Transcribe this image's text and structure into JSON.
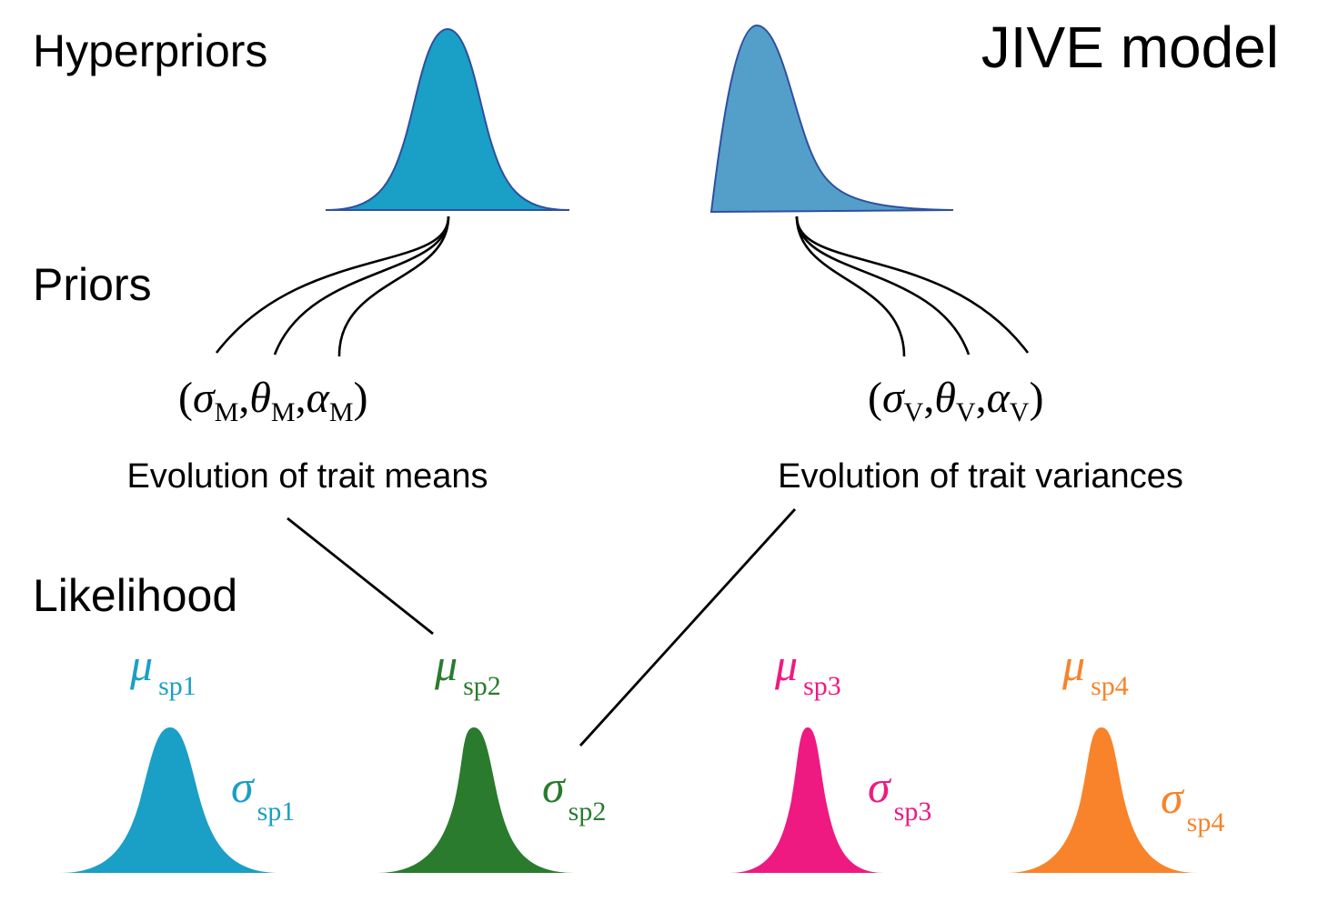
{
  "title": "JIVE model",
  "levels": {
    "hyperpriors": "Hyperpriors",
    "priors": "Priors",
    "likelihood": "Likelihood"
  },
  "hyperprior_means": {
    "color": "#1a9fc6",
    "stroke": "#2f4fa0"
  },
  "hyperprior_variances": {
    "color": "#549fc9",
    "stroke": "#2f4fa0"
  },
  "priors": {
    "means": {
      "open_paren": "(",
      "sigma": "σ",
      "sigma_sub": "M",
      "theta": "θ",
      "theta_sub": "M",
      "alpha": "α",
      "alpha_sub": "M",
      "comma": ",",
      "close_paren": ")",
      "caption": "Evolution of trait means"
    },
    "variances": {
      "open_paren": "(",
      "sigma": "σ",
      "sigma_sub": "V",
      "theta": "θ",
      "theta_sub": "V",
      "alpha": "α",
      "alpha_sub": "V",
      "comma": ",",
      "close_paren": ")",
      "caption": "Evolution of trait variances"
    }
  },
  "species": [
    {
      "mu": "μ",
      "mu_sub": "sp1",
      "sigma": "σ",
      "sigma_sub": "sp1",
      "color": "#1a9fc6"
    },
    {
      "mu": "μ",
      "mu_sub": "sp2",
      "sigma": "σ",
      "sigma_sub": "sp2",
      "color": "#2a7b2e"
    },
    {
      "mu": "μ",
      "mu_sub": "sp3",
      "sigma": "σ",
      "sigma_sub": "sp3",
      "color": "#ee1a82"
    },
    {
      "mu": "μ",
      "mu_sub": "sp4",
      "sigma": "σ",
      "sigma_sub": "sp4",
      "color": "#f8832a"
    }
  ]
}
